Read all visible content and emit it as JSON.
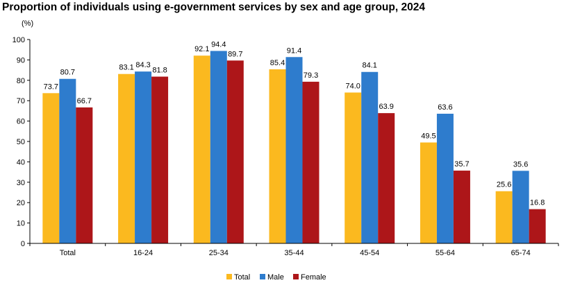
{
  "chart_data": {
    "type": "bar",
    "title": "Proportion of individuals using e-government services by sex and age group, 2024",
    "ylabel": "(%)",
    "xlabel": "",
    "ylim": [
      0,
      100
    ],
    "yticks": [
      0,
      10,
      20,
      30,
      40,
      50,
      60,
      70,
      80,
      90,
      100
    ],
    "grid": false,
    "legend_position": "bottom-center",
    "categories": [
      "Total",
      "16-24",
      "25-34",
      "35-44",
      "45-54",
      "55-64",
      "65-74"
    ],
    "series": [
      {
        "name": "Total",
        "color": "#FBB91F",
        "values": [
          73.7,
          83.1,
          92.1,
          85.4,
          74.0,
          49.5,
          25.6
        ],
        "labels": [
          "73.7",
          "83.1",
          "92.1",
          "85.4",
          "74.0",
          "49.5",
          "25.6"
        ]
      },
      {
        "name": "Male",
        "color": "#2E7CCD",
        "values": [
          80.7,
          84.3,
          94.4,
          91.4,
          84.1,
          63.6,
          35.6
        ],
        "labels": [
          "80.7",
          "84.3",
          "94.4",
          "91.4",
          "84.1",
          "63.6",
          "35.6"
        ]
      },
      {
        "name": "Female",
        "color": "#AD1619",
        "values": [
          66.7,
          81.8,
          89.7,
          79.3,
          63.9,
          35.7,
          16.8
        ],
        "labels": [
          "66.7",
          "81.8",
          "89.7",
          "79.3",
          "63.9",
          "35.7",
          "16.8"
        ]
      }
    ]
  }
}
